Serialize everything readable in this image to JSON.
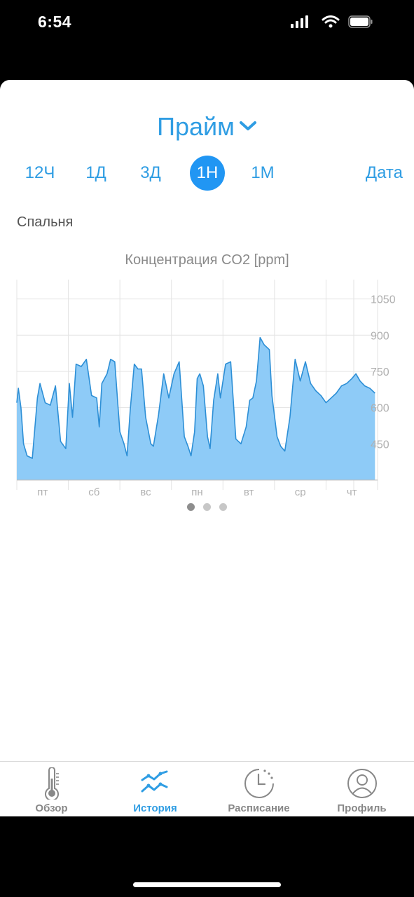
{
  "status": {
    "time": "6:54"
  },
  "header": {
    "title": "Прайм"
  },
  "ranges": {
    "items": [
      "12Ч",
      "1Д",
      "3Д",
      "1Н",
      "1М"
    ],
    "active": "1Н",
    "date_label": "Дата"
  },
  "room": {
    "name": "Спальня"
  },
  "pager": {
    "count": 3,
    "active": 0
  },
  "tabs": {
    "items": [
      {
        "label": "Обзор",
        "icon": "thermometer-icon"
      },
      {
        "label": "История",
        "icon": "chart-lines-icon"
      },
      {
        "label": "Расписание",
        "icon": "clock-icon"
      },
      {
        "label": "Профиль",
        "icon": "user-icon"
      }
    ],
    "active": 1
  },
  "colors": {
    "accent": "#2f9de3",
    "area_fill": "#8ecbf7",
    "line": "#2d8fd6"
  },
  "chart_data": {
    "type": "area",
    "title": "Концентрация CO2 [ppm]",
    "ylabel": "",
    "ylim": [
      300,
      1130
    ],
    "yticks": [
      450,
      600,
      750,
      900,
      1050
    ],
    "ytick_labels": [
      "450",
      "600",
      "750",
      "900",
      "1050"
    ],
    "xlim": [
      0,
      7
    ],
    "day_labels": [
      "пт",
      "сб",
      "вс",
      "пн",
      "вт",
      "ср",
      "чт"
    ],
    "grid": true,
    "series": [
      {
        "x": [
          0,
          0.03,
          0.08,
          0.13,
          0.2,
          0.3,
          0.4,
          0.45,
          0.55,
          0.65,
          0.75,
          0.85,
          0.95,
          1.02,
          1.08,
          1.15,
          1.25,
          1.35,
          1.45,
          1.55,
          1.6,
          1.65,
          1.75,
          1.82,
          1.9,
          2.0,
          2.08,
          2.14,
          2.2,
          2.28,
          2.35,
          2.42,
          2.5,
          2.6,
          2.65,
          2.75,
          2.85,
          2.95,
          3.05,
          3.15,
          3.25,
          3.32,
          3.38,
          3.45,
          3.5,
          3.55,
          3.62,
          3.7,
          3.75,
          3.82,
          3.9,
          3.95,
          4.05,
          4.15,
          4.25,
          4.35,
          4.45,
          4.52,
          4.58,
          4.65,
          4.72,
          4.8,
          4.9,
          4.95,
          5.05,
          5.12,
          5.2,
          5.3,
          5.4,
          5.5,
          5.6,
          5.7,
          5.8,
          5.9,
          6.0,
          6.1,
          6.2,
          6.3,
          6.4,
          6.5,
          6.58,
          6.66,
          6.75,
          6.85,
          6.95
        ],
        "y": [
          620,
          680,
          600,
          450,
          400,
          390,
          640,
          700,
          620,
          610,
          690,
          460,
          430,
          700,
          560,
          780,
          770,
          800,
          650,
          640,
          520,
          700,
          740,
          800,
          790,
          500,
          450,
          400,
          590,
          780,
          760,
          760,
          560,
          450,
          440,
          570,
          740,
          640,
          740,
          790,
          480,
          440,
          400,
          500,
          720,
          740,
          690,
          480,
          430,
          630,
          740,
          640,
          780,
          790,
          470,
          450,
          520,
          630,
          640,
          710,
          890,
          860,
          840,
          650,
          480,
          440,
          420,
          560,
          800,
          710,
          790,
          700,
          670,
          650,
          620,
          640,
          660,
          690,
          700,
          720,
          740,
          710,
          690,
          680,
          660
        ]
      }
    ]
  }
}
